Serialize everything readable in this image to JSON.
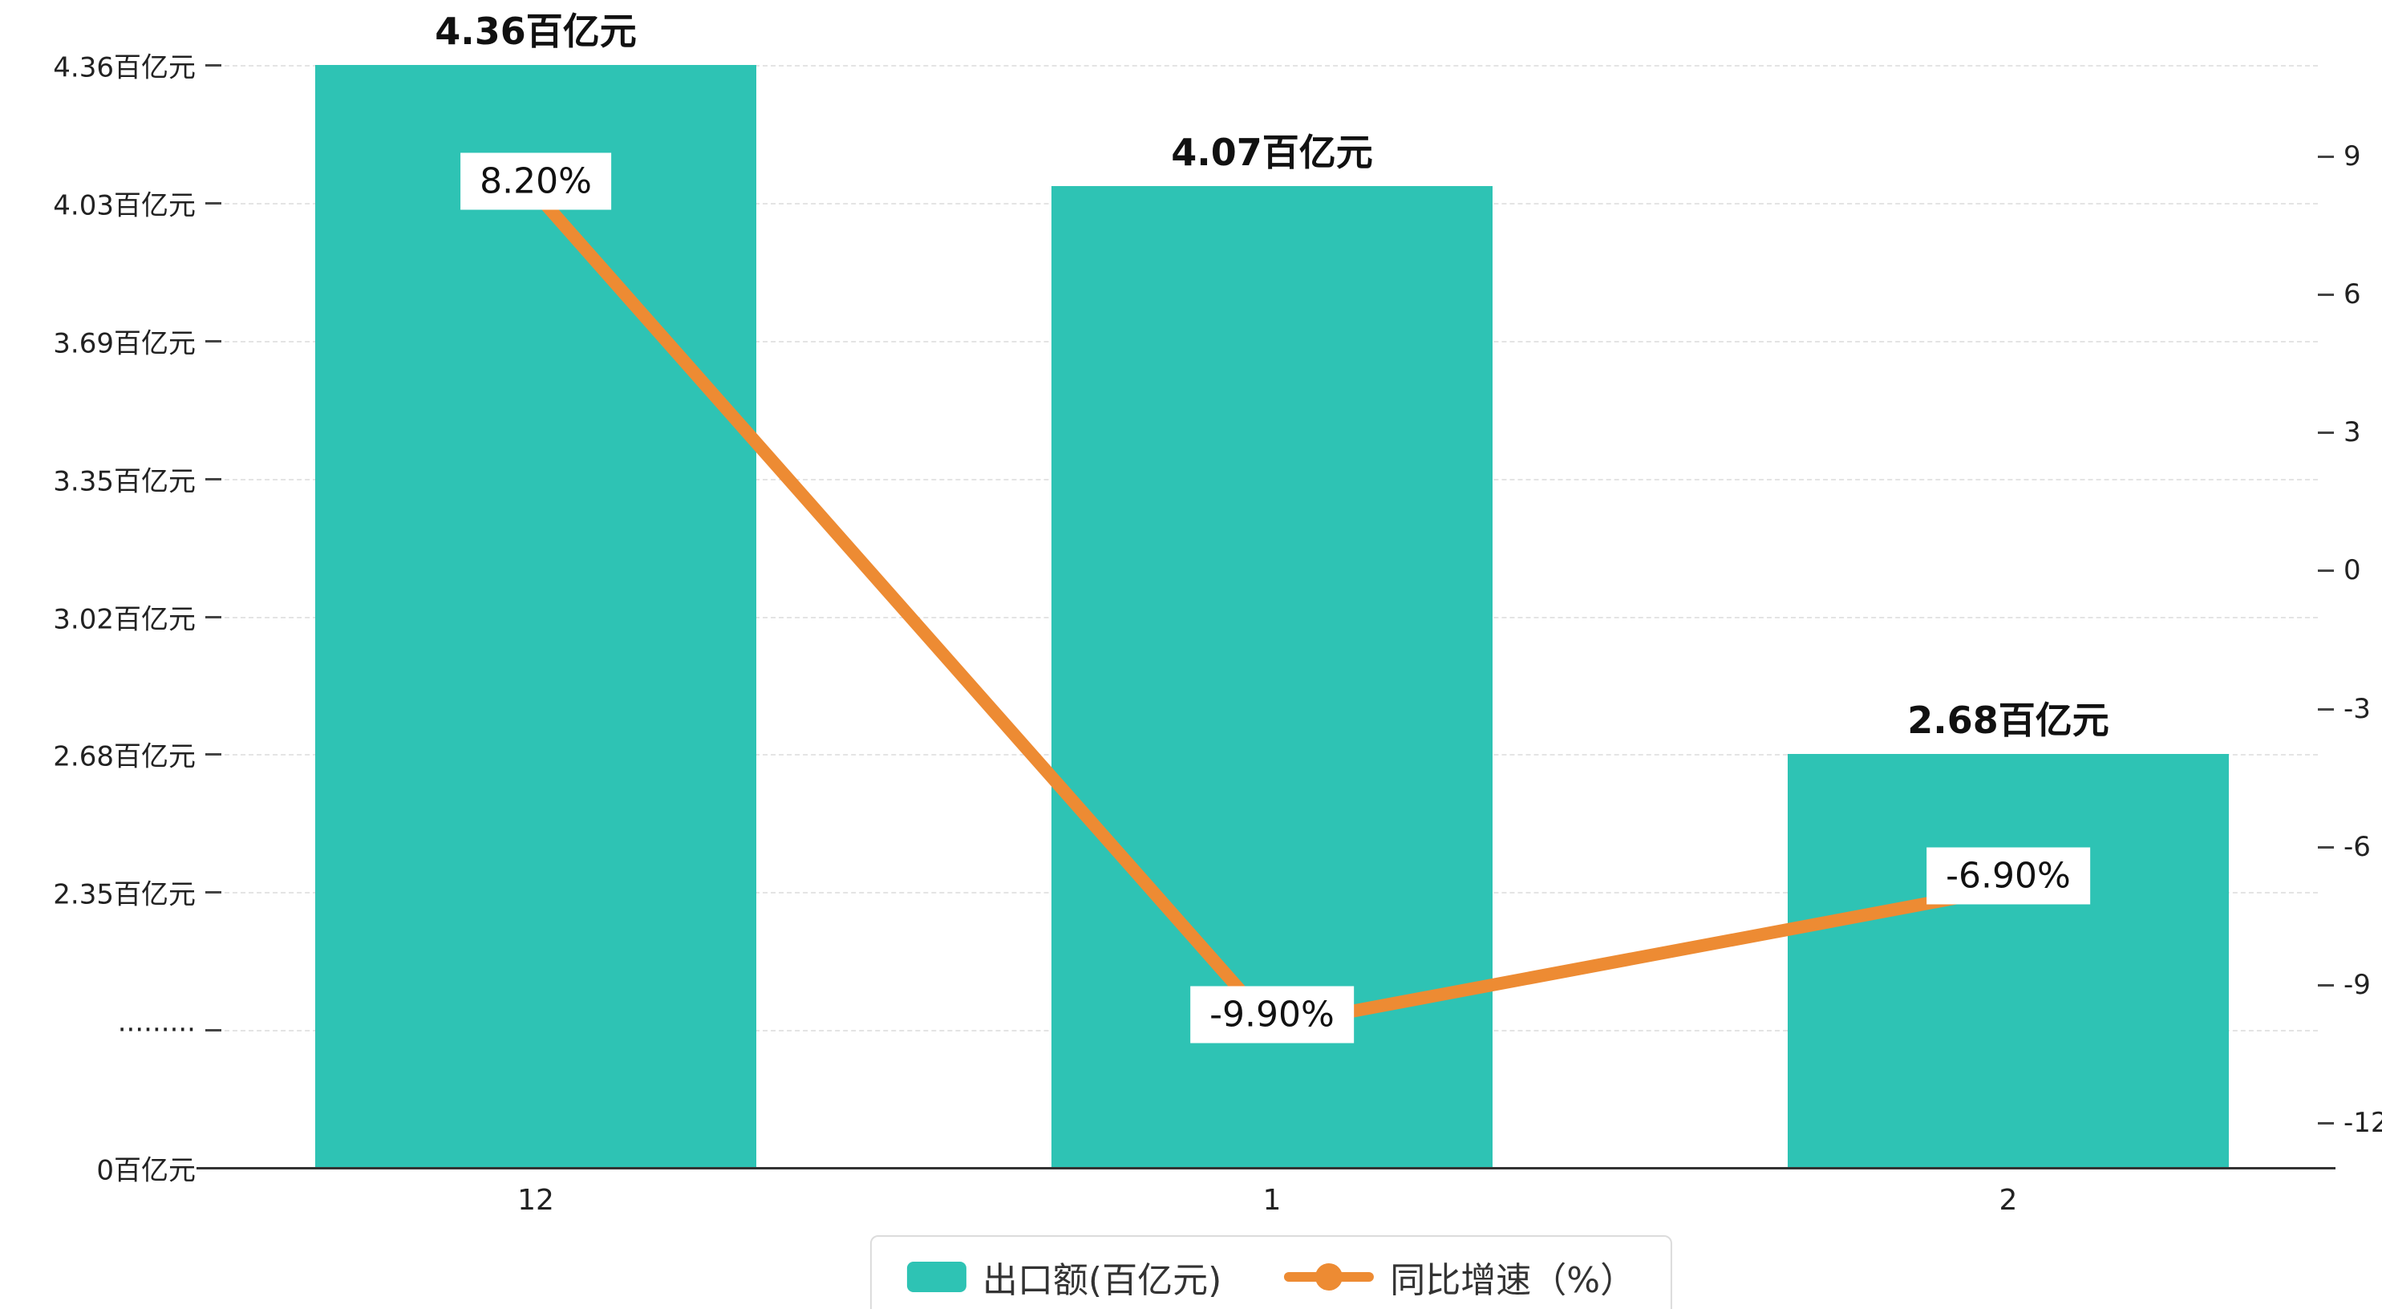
{
  "chart_data": {
    "type": "combo",
    "title": "",
    "categories": [
      "12",
      "1",
      "2"
    ],
    "series": [
      {
        "name": "出口额(百亿元)",
        "type": "bar",
        "axis": "left",
        "color": "#2EC3B4",
        "values": [
          4.36,
          4.07,
          2.68
        ],
        "labels": [
          "4.36百亿元",
          "4.07百亿元",
          "2.68百亿元"
        ]
      },
      {
        "name": "同比增速（%）",
        "type": "line",
        "axis": "right",
        "color": "#ED8B33",
        "values": [
          8.2,
          -9.9,
          -6.9
        ],
        "labels": [
          "8.20%",
          "-9.90%",
          "-6.90%"
        ]
      }
    ],
    "left_axis": {
      "broken": true,
      "tick_labels": [
        "0百亿元",
        "·········",
        "2.35百亿元",
        "2.68百亿元",
        "3.02百亿元",
        "3.35百亿元",
        "3.69百亿元",
        "4.03百亿元",
        "4.36百亿元"
      ],
      "tick_values": [
        0,
        null,
        2.35,
        2.68,
        3.02,
        3.35,
        3.69,
        4.03,
        4.36
      ]
    },
    "right_axis": {
      "tick_labels": [
        "9",
        "6",
        "3",
        "0",
        "-3",
        "-6",
        "-9",
        "-12"
      ],
      "max": 9,
      "min": -12,
      "step": 3
    },
    "grid": {
      "horizontal": true,
      "style": "dashed"
    },
    "legend_position": "bottom"
  },
  "legend": {
    "items": [
      {
        "label": "出口额(百亿元)",
        "marker": "bar-swatch",
        "color": "#2EC3B4"
      },
      {
        "label": "同比增速（%）",
        "marker": "line-dot",
        "color": "#ED8B33"
      }
    ]
  },
  "colors": {
    "bar": "#2EC3B4",
    "line": "#ED8B33",
    "grid": "#E4E4E4",
    "axis": "#333333",
    "label_bg": "#FFFFFF",
    "text": "#111111"
  }
}
